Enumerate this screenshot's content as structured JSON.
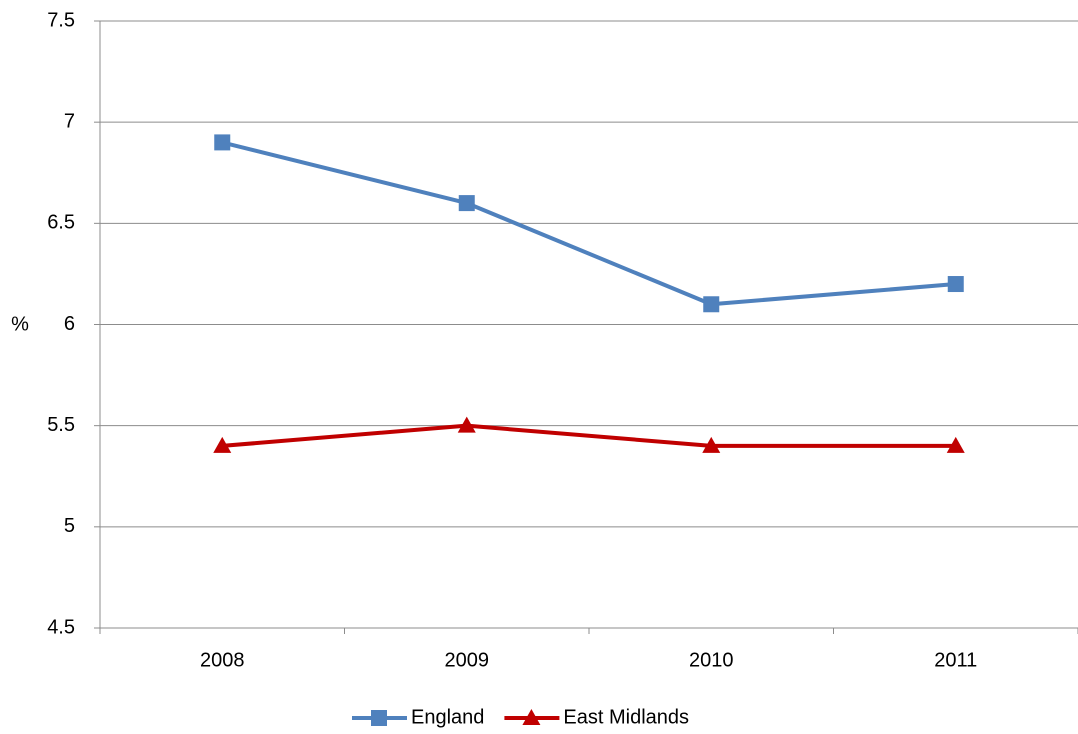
{
  "chart_data": {
    "type": "line",
    "y_label": "%",
    "categories": [
      "2008",
      "2009",
      "2010",
      "2011"
    ],
    "series": [
      {
        "name": "England",
        "color": "#4f81bd",
        "marker": "square",
        "values": [
          6.9,
          6.6,
          6.1,
          6.2
        ]
      },
      {
        "name": "East Midlands",
        "color": "#c00000",
        "marker": "triangle",
        "values": [
          5.4,
          5.5,
          5.4,
          5.4
        ]
      }
    ],
    "ylim": [
      4.5,
      7.5
    ],
    "yticks": [
      4.5,
      5,
      5.5,
      6,
      6.5,
      7,
      7.5
    ],
    "grid": true,
    "legend": "bottom"
  }
}
